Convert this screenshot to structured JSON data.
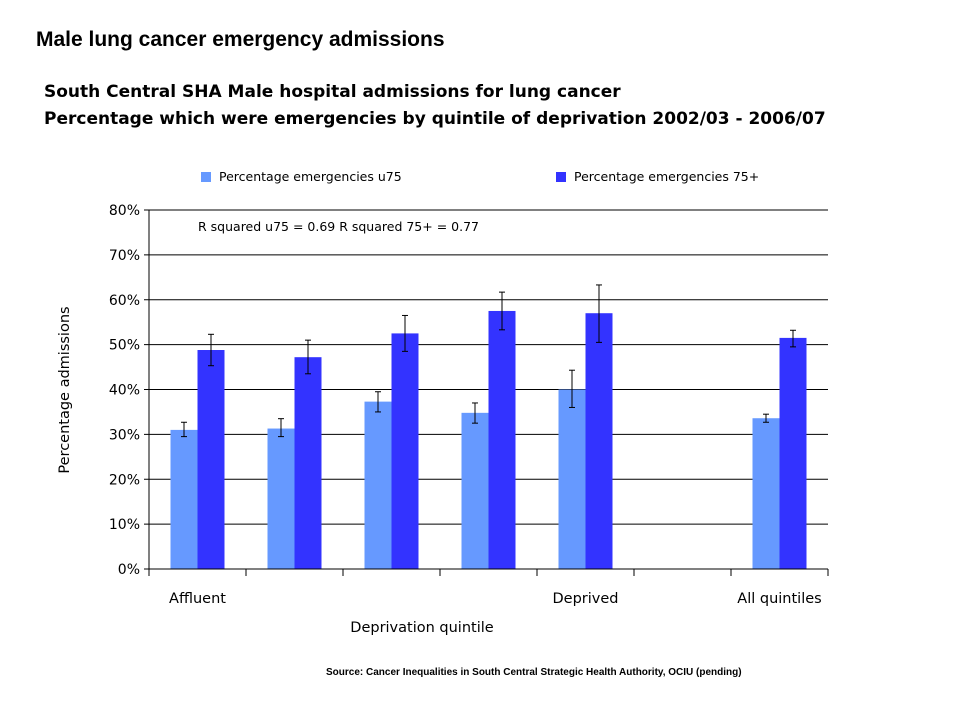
{
  "header": {
    "title": "Male lung cancer emergency admissions",
    "subtitle_line1": "South Central SHA  Male hospital admissions for lung cancer",
    "subtitle_line2": "Percentage which were emergencies by quintile of deprivation 2002/03 - 2006/07"
  },
  "footer": {
    "source": "Source: Cancer Inequalities in South Central Strategic Health Authority, OCIU  (pending)"
  },
  "chart_data": {
    "type": "bar",
    "categories": [
      "Affluent",
      "",
      "",
      "",
      "Deprived",
      "",
      "All quintiles"
    ],
    "series": [
      {
        "name": "Percentage emergencies u75",
        "color": "#6699ff",
        "values": [
          31,
          31.3,
          37.3,
          34.8,
          40,
          null,
          33.6
        ],
        "error_low": [
          29.5,
          29.5,
          35,
          32.5,
          36,
          null,
          32.7
        ],
        "error_high": [
          32.7,
          33.5,
          39.5,
          37,
          44.3,
          null,
          34.5
        ]
      },
      {
        "name": "Percentage emergencies 75+",
        "color": "#3333ff",
        "values": [
          48.8,
          47.2,
          52.5,
          57.5,
          57,
          null,
          51.5
        ],
        "error_low": [
          45.3,
          43.5,
          48.5,
          53.3,
          50.5,
          null,
          49.5
        ],
        "error_high": [
          52.3,
          51,
          56.5,
          61.7,
          63.3,
          null,
          53.2
        ]
      }
    ],
    "y_ticks": [
      "0%",
      "10%",
      "20%",
      "30%",
      "40%",
      "50%",
      "60%",
      "70%",
      "80%"
    ],
    "ylim": [
      0,
      80
    ],
    "xlabel": "Deprivation quintile",
    "ylabel": "Percentage admissions",
    "annotation": "R squared u75 = 0.69  R squared 75+ = 0.77",
    "grid": true,
    "legend_position": "top"
  }
}
